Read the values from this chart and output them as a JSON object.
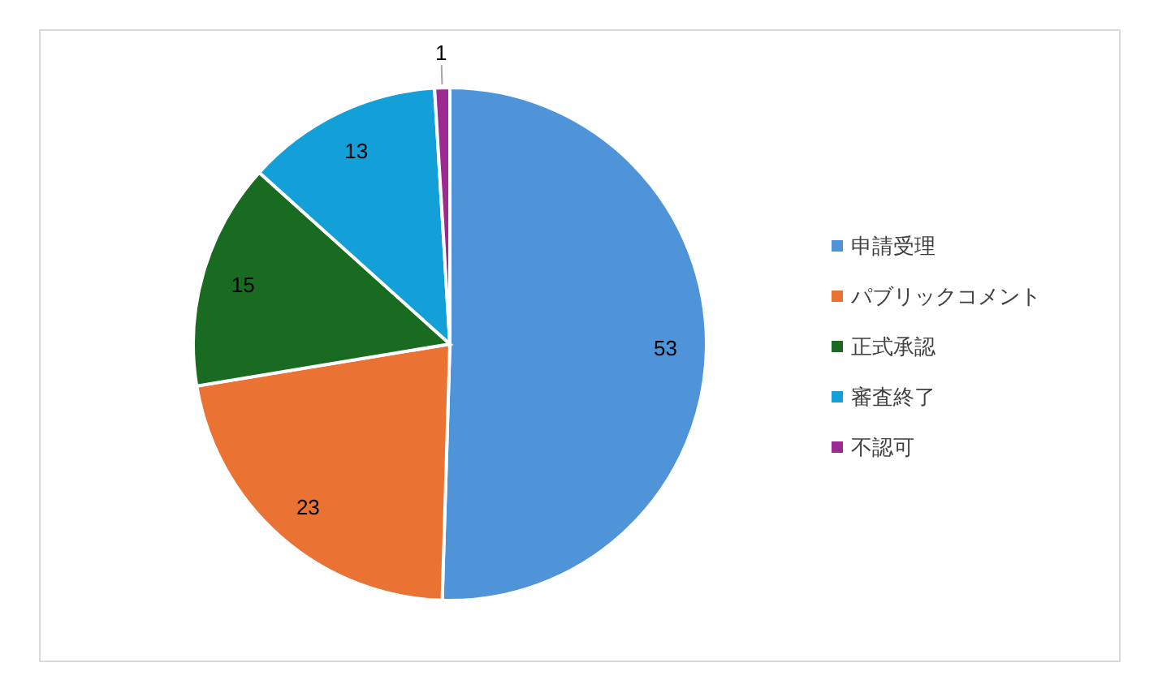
{
  "chart_data": {
    "type": "pie",
    "categories": [
      "申請受理",
      "パブリックコメント",
      "正式承認",
      "審査終了",
      "不認可"
    ],
    "values": [
      53,
      23,
      15,
      13,
      1
    ],
    "colors": [
      "#4f94d8",
      "#ea7233",
      "#1a6b22",
      "#139fd8",
      "#9b2a91"
    ],
    "data_labels": true,
    "legend": "right"
  }
}
